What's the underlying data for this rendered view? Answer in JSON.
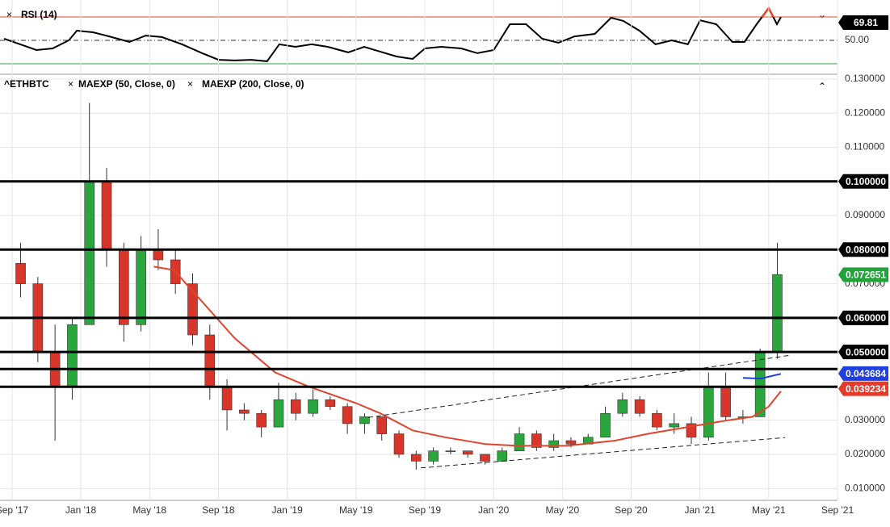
{
  "chart_data": [
    {
      "type": "line",
      "series": [
        {
          "name": "RSI (14)",
          "color": "#000000",
          "overbought_color": "#e0442c",
          "x": [
            -0.46,
            0.48,
            1.42,
            2.36,
            3.3,
            3.77,
            4.71,
            5.65,
            6.83,
            7.77,
            8.71,
            9.89,
            11.06,
            12.01,
            12.95,
            13.89,
            14.83,
            15.54,
            16.48,
            17.42,
            18.36,
            19.54,
            20.48,
            21.42,
            22.36,
            23.3,
            24.01,
            24.95,
            26.12,
            27.06,
            28.01,
            28.95,
            29.89,
            30.83,
            31.77,
            32.71,
            33.89,
            34.83,
            35.54,
            36.48,
            37.42,
            38.36,
            39.3,
            40.01,
            40.95,
            41.89,
            42.59,
            43.3,
            44.0,
            44.48,
            44.71
          ],
          "values": [
            51.4,
            46.6,
            41.7,
            43.1,
            50,
            58.3,
            56.9,
            53.4,
            48.6,
            54.1,
            52.8,
            46.6,
            39.0,
            33.4,
            32.8,
            33.4,
            32.1,
            46.6,
            44.5,
            46.6,
            44.5,
            39.7,
            44.5,
            40.3,
            36.2,
            34.1,
            43.1,
            44.5,
            43.1,
            39.0,
            41.7,
            63.8,
            63.8,
            51.4,
            47.9,
            53.4,
            55.5,
            69.3,
            66.6,
            58.3,
            46.6,
            50,
            46.6,
            67.2,
            63.8,
            48.6,
            48.6,
            63.8,
            77.6,
            63.8,
            69.81
          ]
        }
      ],
      "last_label": {
        "value": 69.81,
        "label": "69.81"
      },
      "levels": [
        {
          "value": 70,
          "color": "#e0442c",
          "style": "solid"
        },
        {
          "value": 50,
          "color": "#333333",
          "style": "dashdot"
        },
        {
          "value": 30,
          "color": "#2a9d3c",
          "style": "solid"
        }
      ],
      "xlim": [
        -0.7,
        48
      ],
      "ylim": [
        22.4,
        84.5
      ],
      "yticks": [
        {
          "value": 50,
          "label": "50.00"
        }
      ]
    },
    {
      "type": "candlestick",
      "series": [
        {
          "name": "^ETHBTC",
          "type": "candlestick",
          "up_color": "#2aa63c",
          "down_color": "#d9362b",
          "x": [
            0.5,
            1.5,
            2.5,
            3.5,
            4.5,
            5.5,
            6.5,
            7.5,
            8.5,
            9.5,
            10.5,
            11.5,
            12.5,
            13.5,
            14.5,
            15.5,
            16.5,
            17.5,
            18.5,
            19.5,
            20.5,
            21.5,
            22.5,
            23.5,
            24.5,
            25.5,
            26.5,
            27.5,
            28.5,
            29.5,
            30.5,
            31.5,
            32.5,
            33.5,
            34.5,
            35.5,
            36.5,
            37.5,
            38.5,
            39.5,
            40.5,
            41.5,
            42.5,
            43.5,
            44.5
          ],
          "open": [
            0.076,
            0.07,
            0.05,
            0.04,
            0.058,
            0.1,
            0.08,
            0.058,
            0.08,
            0.077,
            0.07,
            0.055,
            0.04,
            0.033,
            0.032,
            0.028,
            0.036,
            0.032,
            0.036,
            0.034,
            0.029,
            0.031,
            0.026,
            0.02,
            0.018,
            0.021,
            0.021,
            0.02,
            0.018,
            0.021,
            0.026,
            0.022,
            0.024,
            0.023,
            0.025,
            0.032,
            0.036,
            0.032,
            0.028,
            0.029,
            0.025,
            0.04,
            0.031,
            0.031,
            0.05
          ],
          "high": [
            0.082,
            0.072,
            0.058,
            0.06,
            0.123,
            0.104,
            0.082,
            0.084,
            0.086,
            0.08,
            0.073,
            0.058,
            0.042,
            0.035,
            0.033,
            0.041,
            0.038,
            0.039,
            0.037,
            0.035,
            0.032,
            0.031,
            0.027,
            0.021,
            0.022,
            0.022,
            0.021,
            0.02,
            0.022,
            0.028,
            0.027,
            0.026,
            0.025,
            0.026,
            0.034,
            0.038,
            0.037,
            0.033,
            0.032,
            0.031,
            0.044,
            0.044,
            0.033,
            0.051,
            0.082
          ],
          "low": [
            0.066,
            0.047,
            0.024,
            0.036,
            0.058,
            0.075,
            0.053,
            0.056,
            0.074,
            0.067,
            0.052,
            0.036,
            0.027,
            0.03,
            0.025,
            0.028,
            0.03,
            0.031,
            0.033,
            0.026,
            0.026,
            0.024,
            0.019,
            0.0155,
            0.017,
            0.02,
            0.019,
            0.017,
            0.018,
            0.021,
            0.021,
            0.021,
            0.022,
            0.023,
            0.025,
            0.031,
            0.031,
            0.027,
            0.026,
            0.023,
            0.024,
            0.03,
            0.029,
            0.031,
            0.048
          ],
          "close": [
            0.07,
            0.05,
            0.04,
            0.058,
            0.1,
            0.08,
            0.058,
            0.08,
            0.077,
            0.07,
            0.055,
            0.04,
            0.033,
            0.032,
            0.028,
            0.036,
            0.032,
            0.036,
            0.034,
            0.029,
            0.031,
            0.026,
            0.02,
            0.018,
            0.021,
            0.021,
            0.02,
            0.018,
            0.021,
            0.026,
            0.022,
            0.024,
            0.023,
            0.025,
            0.032,
            0.036,
            0.032,
            0.028,
            0.029,
            0.025,
            0.04,
            0.031,
            0.031,
            0.05,
            0.0727
          ]
        },
        {
          "name": "MAEXP (50, Close, 0)",
          "type": "line",
          "color": "#e0442c",
          "x": [
            8.24,
            9.42,
            10.12,
            11.54,
            12.95,
            15.3,
            17.18,
            20.0,
            21.42,
            23.3,
            25.18,
            27.54,
            29.42,
            32.24,
            35.06,
            36.95,
            39.3,
            41.65,
            43.06,
            44.0,
            44.71
          ],
          "values": [
            0.075,
            0.074,
            0.07,
            0.062,
            0.054,
            0.044,
            0.04,
            0.035,
            0.032,
            0.027,
            0.025,
            0.023,
            0.0225,
            0.0225,
            0.024,
            0.026,
            0.028,
            0.03,
            0.031,
            0.034,
            0.0385
          ]
        },
        {
          "name": "MAEXP (200, Close, 0)",
          "type": "line",
          "color": "#1a3fd6",
          "x": [
            42.5,
            43.54,
            44.71
          ],
          "values": [
            0.0424,
            0.0422,
            0.0436
          ]
        }
      ],
      "trendlines": [
        {
          "x": [
            20.71,
            45.18
          ],
          "values": [
            0.0308,
            0.049
          ]
        },
        {
          "x": [
            23.77,
            44.95
          ],
          "values": [
            0.016,
            0.0249
          ]
        }
      ],
      "levels": [
        {
          "value": 0.1,
          "label": "0.100000"
        },
        {
          "value": 0.08,
          "label": "0.080000"
        },
        {
          "value": 0.06,
          "label": "0.060000"
        },
        {
          "value": 0.05,
          "label": "0.050000"
        },
        {
          "value": 0.045
        },
        {
          "value": 0.0398
        }
      ],
      "price_labels": [
        {
          "value": 0.072651,
          "label": "0.072651",
          "color": "#22a33a"
        },
        {
          "value": 0.043684,
          "label": "0.043684",
          "color": "#1f3fe0"
        },
        {
          "value": 0.039234,
          "label": "0.039234",
          "color": "#e53b2c"
        }
      ],
      "xlim": [
        -0.7,
        48
      ],
      "ylim": [
        0.0065,
        0.1307
      ],
      "xticks": [
        {
          "value": 0,
          "label": "Sep '17"
        },
        {
          "value": 4,
          "label": "Jan '18"
        },
        {
          "value": 8,
          "label": "May '18"
        },
        {
          "value": 12,
          "label": "Sep '18"
        },
        {
          "value": 16,
          "label": "Jan '19"
        },
        {
          "value": 20,
          "label": "May '19"
        },
        {
          "value": 24,
          "label": "Sep '19"
        },
        {
          "value": 28,
          "label": "Jan '20"
        },
        {
          "value": 32,
          "label": "May '20"
        },
        {
          "value": 36,
          "label": "Sep '20"
        },
        {
          "value": 40,
          "label": "Jan '21"
        },
        {
          "value": 44,
          "label": "May '21"
        },
        {
          "value": 48,
          "label": "Sep '21"
        }
      ],
      "yticks": [
        {
          "value": 0.13,
          "label": "0.130000"
        },
        {
          "value": 0.12,
          "label": "0.120000"
        },
        {
          "value": 0.11,
          "label": "0.110000"
        },
        {
          "value": 0.09,
          "label": "0.090000"
        },
        {
          "value": 0.07,
          "label": "0.070000"
        },
        {
          "value": 0.03,
          "label": "0.030000"
        },
        {
          "value": 0.02,
          "label": "0.020000"
        },
        {
          "value": 0.01,
          "label": "0.010000"
        }
      ],
      "grid": true
    }
  ]
}
